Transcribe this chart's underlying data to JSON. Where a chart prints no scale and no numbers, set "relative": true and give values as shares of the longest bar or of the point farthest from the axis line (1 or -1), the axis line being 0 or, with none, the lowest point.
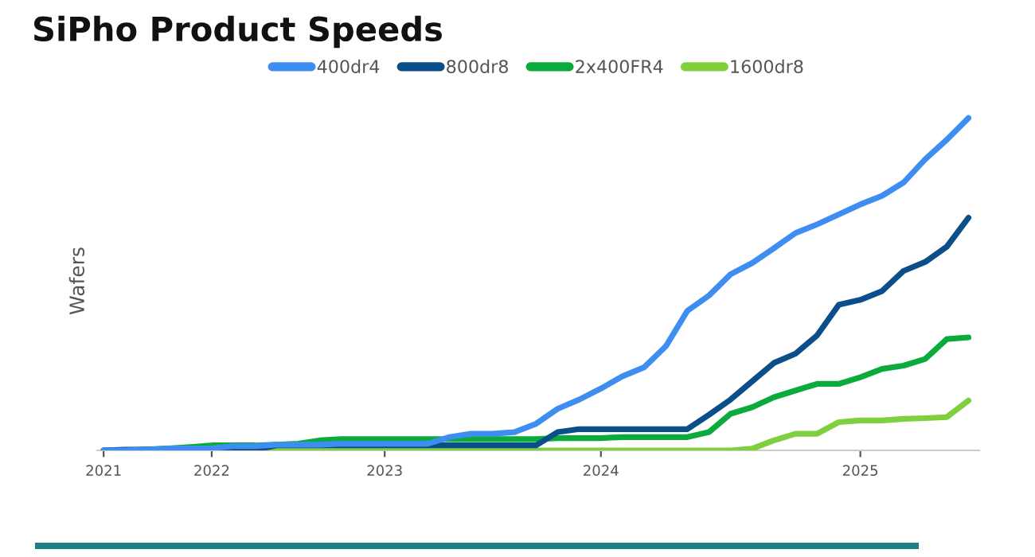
{
  "chart_data": {
    "type": "line",
    "title": "SiPho Product Speeds",
    "ylabel": "Wafers",
    "relative": true,
    "legend": "top",
    "grid": false,
    "tick_labels": "x",
    "marker": "none",
    "line_style": "solid",
    "categories": [
      "2021",
      null,
      null,
      null,
      null,
      "2022",
      null,
      null,
      null,
      null,
      null,
      null,
      null,
      "2023",
      null,
      null,
      null,
      null,
      null,
      null,
      null,
      null,
      null,
      "2024",
      null,
      null,
      null,
      null,
      null,
      null,
      null,
      null,
      null,
      null,
      null,
      "2025",
      null,
      null,
      null,
      null,
      null
    ],
    "series": [
      {
        "name": "400dr4",
        "color": "#3d8ef0",
        "values": [
          0,
          0,
          0.002,
          0.006,
          0.006,
          0.006,
          0.013,
          0.013,
          0.017,
          0.017,
          0.017,
          0.02,
          0.02,
          0.02,
          0.02,
          0.02,
          0.04,
          0.05,
          0.05,
          0.055,
          0.08,
          0.125,
          0.153,
          0.186,
          0.223,
          0.25,
          0.313,
          0.42,
          0.466,
          0.53,
          0.564,
          0.608,
          0.654,
          0.68,
          0.71,
          0.74,
          0.766,
          0.806,
          0.876,
          0.935,
          1
        ]
      },
      {
        "name": "800dr8",
        "color": "#0b4f8a",
        "values": [
          0,
          0.002,
          0.002,
          0.002,
          0.002,
          0.002,
          0.002,
          0.002,
          0.015,
          0.015,
          0.015,
          0.015,
          0.015,
          0.015,
          0.015,
          0.015,
          0.015,
          0.015,
          0.015,
          0.015,
          0.015,
          0.055,
          0.064,
          0.064,
          0.064,
          0.064,
          0.064,
          0.064,
          0.107,
          0.153,
          0.208,
          0.263,
          0.291,
          0.346,
          0.438,
          0.453,
          0.479,
          0.54,
          0.567,
          0.613,
          0.7
        ]
      },
      {
        "name": "2x400FR4",
        "color": "#0aab3c",
        "values": [
          0,
          0,
          0.003,
          0.006,
          0.01,
          0.015,
          0.015,
          0.015,
          0.017,
          0.02,
          0.03,
          0.034,
          0.034,
          0.034,
          0.034,
          0.034,
          0.034,
          0.034,
          0.034,
          0.034,
          0.034,
          0.037,
          0.037,
          0.037,
          0.04,
          0.04,
          0.04,
          0.04,
          0.055,
          0.11,
          0.13,
          0.16,
          0.18,
          0.2,
          0.2,
          0.22,
          0.245,
          0.255,
          0.275,
          0.335,
          0.34
        ]
      },
      {
        "name": "1600dr8",
        "color": "#7fcf3f",
        "values": [
          null,
          null,
          null,
          null,
          null,
          null,
          0,
          0,
          0,
          0,
          0,
          0,
          0,
          0,
          0,
          0,
          0,
          0,
          0,
          0,
          0,
          0,
          0,
          0,
          0,
          0,
          0,
          0,
          0,
          0,
          0.005,
          0.03,
          0.05,
          0.05,
          0.085,
          0.09,
          0.09,
          0.095,
          0.097,
          0.1,
          0.15
        ]
      }
    ]
  }
}
